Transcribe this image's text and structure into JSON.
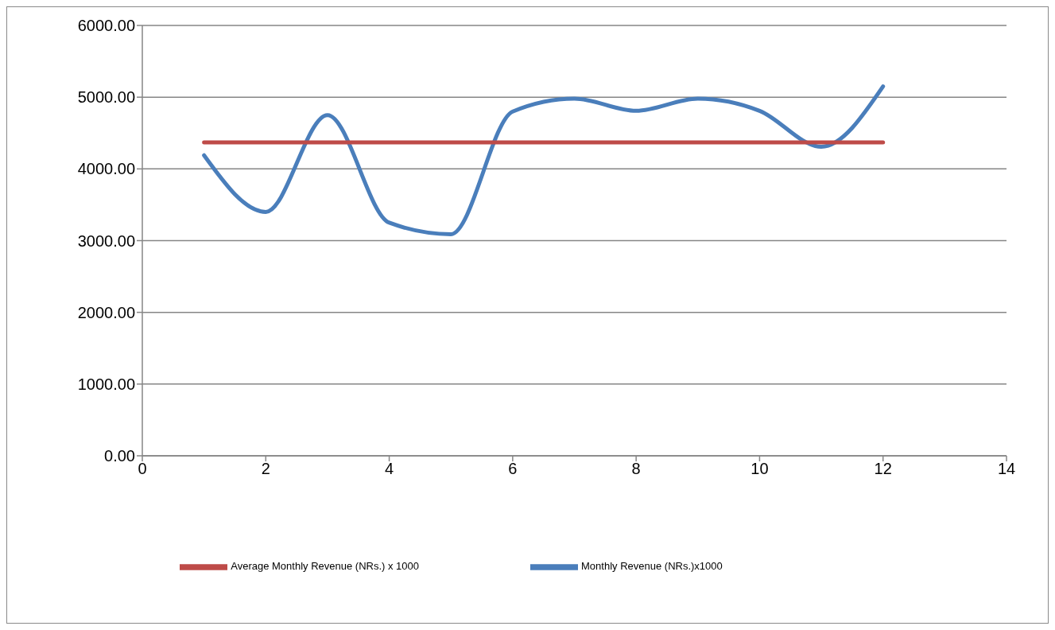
{
  "chart_data": {
    "type": "line",
    "x": [
      1,
      2,
      3,
      4,
      5,
      6,
      7,
      8,
      9,
      10,
      11,
      12
    ],
    "series": [
      {
        "name": "Monthly  Revenue (NRs.)x1000",
        "color": "#4a7ebb",
        "values": [
          4190,
          3400,
          4750,
          3250,
          3090,
          4800,
          4980,
          4810,
          4980,
          4810,
          4310,
          5150
        ]
      },
      {
        "name": "Average Monthly Revenue (NRs.) x 1000",
        "color": "#be4b48",
        "values": [
          4370,
          4370,
          4370,
          4370,
          4370,
          4370,
          4370,
          4370,
          4370,
          4370,
          4370,
          4370
        ]
      }
    ],
    "xlim": [
      0,
      14
    ],
    "xticks": [
      0,
      2,
      4,
      6,
      8,
      10,
      12,
      14
    ],
    "ylim": [
      0,
      6000
    ],
    "yticks": [
      {
        "value": 0,
        "label": "0.00"
      },
      {
        "value": 1000,
        "label": "1000.00"
      },
      {
        "value": 2000,
        "label": "2000.00"
      },
      {
        "value": 3000,
        "label": "3000.00"
      },
      {
        "value": 4000,
        "label": "4000.00"
      },
      {
        "value": 5000,
        "label": "5000.00"
      },
      {
        "value": 6000,
        "label": "6000.00"
      }
    ],
    "grid": "y",
    "legend": "bottom",
    "marker": "none",
    "line_style": "solid"
  }
}
